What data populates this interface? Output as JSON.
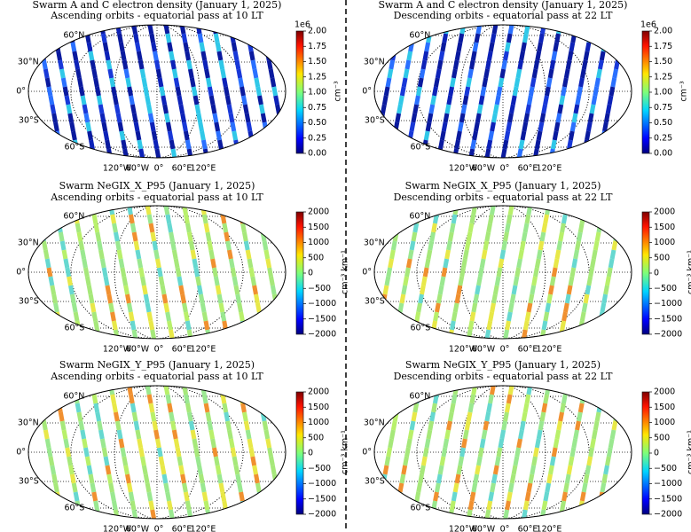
{
  "figure": {
    "panels": [
      {
        "title": "Swarm A and C electron density (January 1, 2025)",
        "subtitle": "Ascending orbits - equatorial pass at 10 LT",
        "lat_labels": [
          "60°N",
          "30°N",
          "0°",
          "30°S",
          "60°S"
        ],
        "lon_labels": [
          "120°W",
          "60°W",
          "0°",
          "60°E",
          "120°E"
        ],
        "colorbar": {
          "label": "cm⁻³",
          "offset_text": "1e6",
          "lim": [
            0,
            2
          ],
          "ticks": [
            {
              "value": 0,
              "label": "0.00"
            },
            {
              "value": 0.25,
              "label": "0.25"
            },
            {
              "value": 0.5,
              "label": "0.50"
            },
            {
              "value": 0.75,
              "label": "0.75"
            },
            {
              "value": 1,
              "label": "1.00"
            },
            {
              "value": 1.25,
              "label": "1.25"
            },
            {
              "value": 1.5,
              "label": "1.50"
            },
            {
              "value": 1.75,
              "label": "1.75"
            },
            {
              "value": 2,
              "label": "2.00"
            }
          ]
        }
      },
      {
        "title": "Swarm A and C electron density (January 1, 2025)",
        "subtitle": "Descending orbits - equatorial pass at 22 LT",
        "lat_labels": [
          "60°N",
          "30°N",
          "0°",
          "30°S",
          "60°S"
        ],
        "lon_labels": [
          "120°W",
          "60°W",
          "0°",
          "60°E",
          "120°E"
        ],
        "colorbar": {
          "label": "cm⁻³",
          "offset_text": "1e6",
          "lim": [
            0,
            2
          ],
          "ticks": [
            {
              "value": 0,
              "label": "0.00"
            },
            {
              "value": 0.25,
              "label": "0.25"
            },
            {
              "value": 0.5,
              "label": "0.50"
            },
            {
              "value": 0.75,
              "label": "0.75"
            },
            {
              "value": 1,
              "label": "1.00"
            },
            {
              "value": 1.25,
              "label": "1.25"
            },
            {
              "value": 1.5,
              "label": "1.50"
            },
            {
              "value": 1.75,
              "label": "1.75"
            },
            {
              "value": 2,
              "label": "2.00"
            }
          ]
        }
      },
      {
        "title": "Swarm NeGIX_X_P95 (January 1, 2025)",
        "subtitle": "Ascending orbits - equatorial pass at 10 LT",
        "lat_labels": [
          "60°N",
          "30°N",
          "0°",
          "30°S",
          "60°S"
        ],
        "lon_labels": [
          "120°W",
          "60°W",
          "0°",
          "60°E",
          "120°E"
        ],
        "colorbar": {
          "label": "cm⁻³ km⁻¹",
          "lim": [
            -2000,
            2000
          ],
          "ticks": [
            {
              "value": -2000,
              "label": "−2000"
            },
            {
              "value": -1500,
              "label": "−1500"
            },
            {
              "value": -1000,
              "label": "−1000"
            },
            {
              "value": -500,
              "label": "−500"
            },
            0,
            500,
            1000,
            1500,
            2000
          ]
        }
      },
      {
        "title": "Swarm NeGIX_X_P95 (January 1, 2025)",
        "subtitle": "Descending orbits - equatorial pass at 22 LT",
        "lat_labels": [
          "60°N",
          "30°N",
          "0°",
          "30°S",
          "60°S"
        ],
        "lon_labels": [
          "120°W",
          "60°W",
          "0°",
          "60°E",
          "120°E"
        ],
        "colorbar": {
          "label": "cm⁻³ km⁻¹",
          "lim": [
            -2000,
            2000
          ],
          "ticks": [
            {
              "value": -2000,
              "label": "−2000"
            },
            {
              "value": -1500,
              "label": "−1500"
            },
            {
              "value": -1000,
              "label": "−1000"
            },
            {
              "value": -500,
              "label": "−500"
            },
            0,
            500,
            1000,
            1500,
            2000
          ]
        }
      },
      {
        "title": "Swarm NeGIX_Y_P95 (January 1, 2025)",
        "subtitle": "Ascending orbits - equatorial pass at 10 LT",
        "lat_labels": [
          "60°N",
          "30°N",
          "0°",
          "30°S",
          "60°S"
        ],
        "lon_labels": [
          "120°W",
          "60°W",
          "0°",
          "60°E",
          "120°E"
        ],
        "colorbar": {
          "label": "cm⁻³ km⁻¹",
          "lim": [
            -2000,
            2000
          ],
          "ticks": [
            {
              "value": -2000,
              "label": "−2000"
            },
            {
              "value": -1500,
              "label": "−1500"
            },
            {
              "value": -1000,
              "label": "−1000"
            },
            {
              "value": -500,
              "label": "−500"
            },
            0,
            500,
            1000,
            1500,
            2000
          ]
        }
      },
      {
        "title": "Swarm NeGIX_Y_P95 (January 1, 2025)",
        "subtitle": "Descending orbits - equatorial pass at 22 LT",
        "lat_labels": [
          "60°N",
          "30°N",
          "0°",
          "30°S",
          "60°S"
        ],
        "lon_labels": [
          "120°W",
          "60°W",
          "0°",
          "60°E",
          "120°E"
        ],
        "colorbar": {
          "label": "cm⁻³ km⁻¹",
          "lim": [
            -2000,
            2000
          ],
          "ticks": [
            {
              "value": -2000,
              "label": "−2000"
            },
            {
              "value": -1500,
              "label": "−1500"
            },
            {
              "value": -1000,
              "label": "−1000"
            },
            {
              "value": -500,
              "label": "−500"
            },
            0,
            500,
            1000,
            1500,
            2000
          ]
        }
      }
    ]
  }
}
